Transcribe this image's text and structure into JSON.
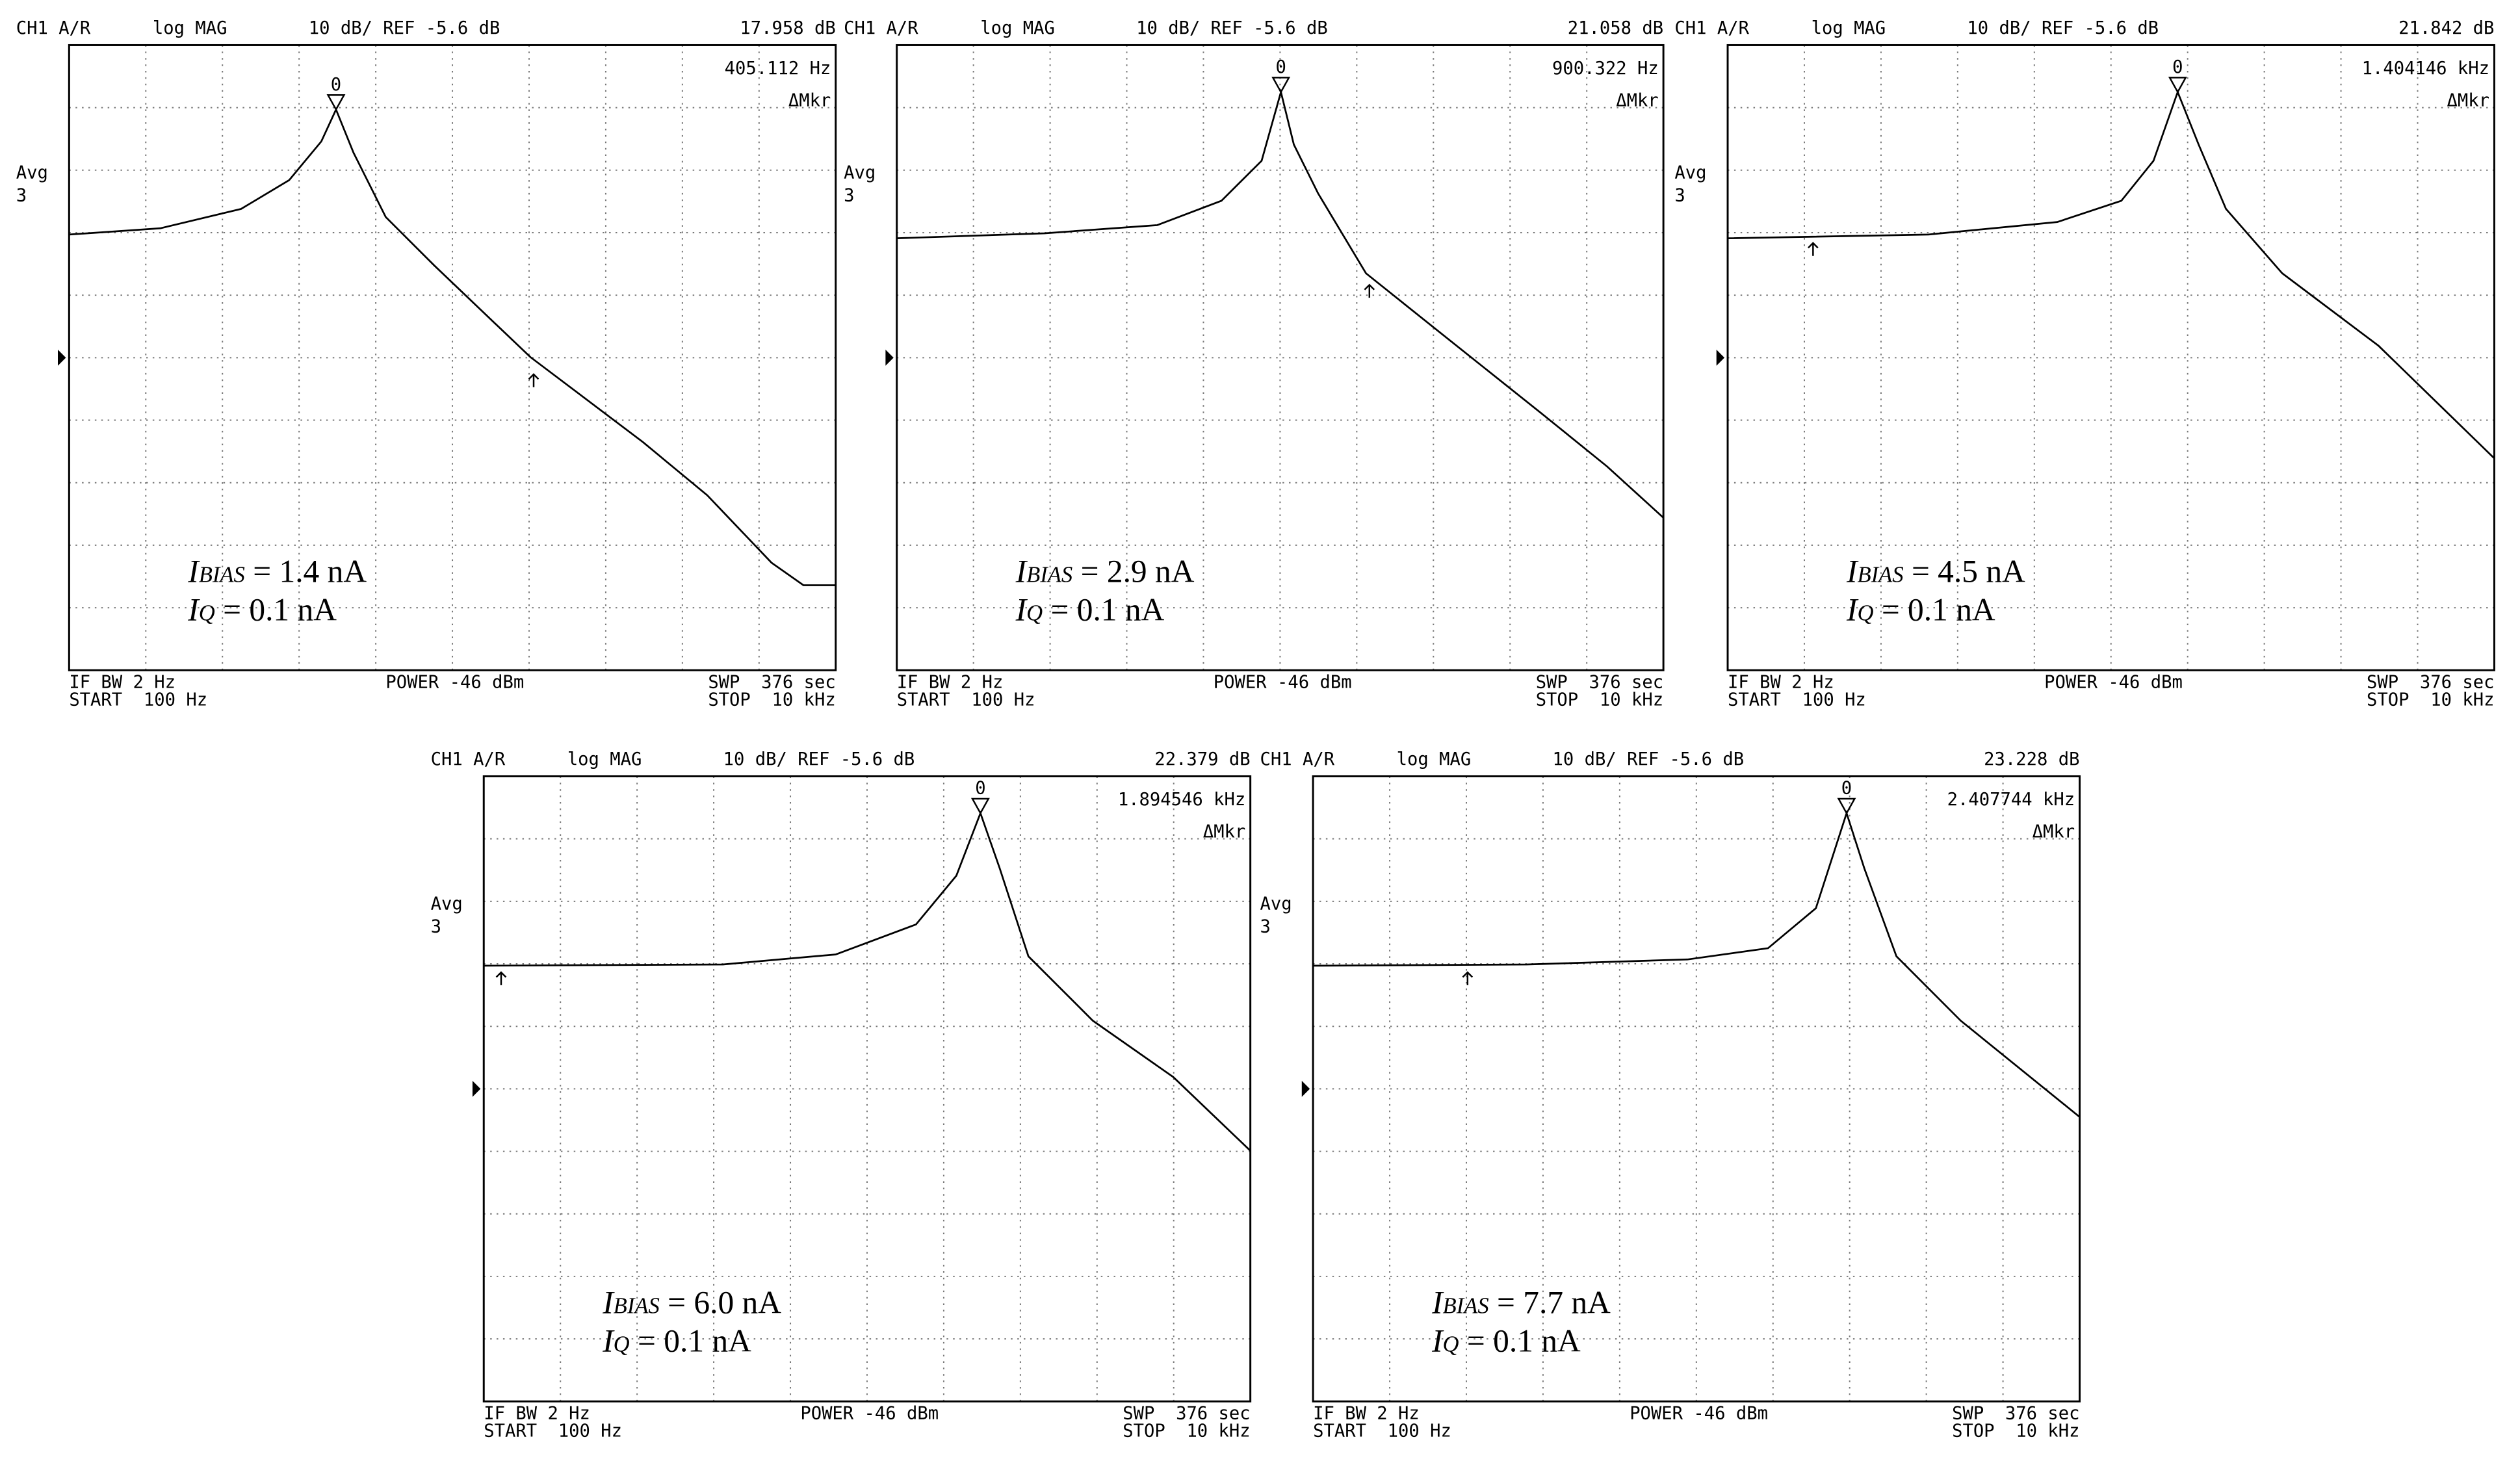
{
  "chart_data": [
    {
      "type": "line",
      "header": {
        "channel": "CH1 A/R",
        "format": "log MAG",
        "scale": "10 dB/ REF -5.6 dB",
        "readout": "17.958 dB",
        "marker_readout": "405.112 Hz",
        "marker_mode": "ΔMkr",
        "avg_label": "Avg",
        "avg_count": "3"
      },
      "marker_label": "0",
      "footer": {
        "if_bw": "IF BW 2 Hz",
        "start": "START  100 Hz",
        "power": "POWER -46 dBm",
        "sweep": "SWP  376 sec",
        "stop": "STOP  10 kHz"
      },
      "annotations": [
        {
          "symbol": "I",
          "subscript": "BIAS",
          "text": " = 1.4 nA"
        },
        {
          "symbol": "I",
          "subscript": "Q",
          "text": " = 0.1 nA"
        }
      ],
      "x": [
        100,
        173,
        281,
        375,
        455,
        497,
        552,
        670,
        895,
        1597,
        3140,
        4620,
        6800,
        8240,
        10000
      ],
      "values": [
        14.1,
        15.1,
        18.2,
        22.8,
        29.0,
        34.1,
        27.2,
        16.9,
        9.2,
        -5.5,
        -19.1,
        -27.6,
        -38.4,
        -42.0,
        -42.0
      ],
      "ref_marker": {
        "x": 1629,
        "y": -8.0
      },
      "color": "#000000",
      "log_x": true,
      "xlim": [
        100,
        10000
      ],
      "xticks": [
        100,
        158.5,
        251.2,
        398.1,
        631,
        1000,
        1585,
        2512,
        3981,
        6310,
        10000
      ],
      "ylim": [
        -55.6,
        44.4
      ],
      "yticks": [
        -55.6,
        -45.6,
        -35.6,
        -25.6,
        -15.6,
        -5.6,
        4.4,
        14.4,
        24.4,
        34.4,
        44.4
      ],
      "grid": true
    },
    {
      "type": "line",
      "header": {
        "channel": "CH1 A/R",
        "format": "log MAG",
        "scale": "10 dB/ REF -5.6 dB",
        "readout": "21.058 dB",
        "marker_readout": "900.322 Hz",
        "marker_mode": "ΔMkr",
        "avg_label": "Avg",
        "avg_count": "3"
      },
      "marker_label": "0",
      "footer": {
        "if_bw": "IF BW 2 Hz",
        "start": "START  100 Hz",
        "power": "POWER -46 dBm",
        "sweep": "SWP  376 sec",
        "stop": "STOP  10 kHz"
      },
      "annotations": [
        {
          "symbol": "I",
          "subscript": "BIAS",
          "text": " = 2.9 nA"
        },
        {
          "symbol": "I",
          "subscript": "Q",
          "text": " = 0.1 nA"
        }
      ],
      "x": [
        100,
        243,
        478,
        703,
        895,
        1005,
        1086,
        1256,
        1675,
        2717,
        4850,
        7130,
        10000
      ],
      "values": [
        13.5,
        14.3,
        15.6,
        19.5,
        25.9,
        36.9,
        28.5,
        20.7,
        7.9,
        -2.4,
        -14.7,
        -23.0,
        -31.2
      ],
      "ref_marker": {
        "x": 1710,
        "y": 6.3
      },
      "color": "#000000",
      "log_x": true,
      "xlim": [
        100,
        10000
      ],
      "xticks": [
        100,
        158.5,
        251.2,
        398.1,
        631,
        1000,
        1585,
        2512,
        3981,
        6310,
        10000
      ],
      "ylim": [
        -55.6,
        44.4
      ],
      "yticks": [
        -55.6,
        -45.6,
        -35.6,
        -25.6,
        -15.6,
        -5.6,
        4.4,
        14.4,
        24.4,
        34.4,
        44.4
      ],
      "grid": true
    },
    {
      "type": "line",
      "header": {
        "channel": "CH1 A/R",
        "format": "log MAG",
        "scale": "10 dB/ REF -5.6 dB",
        "readout": "21.842 dB",
        "marker_readout": "1.404146 kHz",
        "marker_mode": "ΔMkr",
        "avg_label": "Avg",
        "avg_count": "3"
      },
      "marker_label": "0",
      "footer": {
        "if_bw": "IF BW 2 Hz",
        "start": "START  100 Hz",
        "power": "POWER -46 dBm",
        "sweep": "SWP  376 sec",
        "stop": "STOP  10 kHz"
      },
      "annotations": [
        {
          "symbol": "I",
          "subscript": "BIAS",
          "text": " = 4.5 nA"
        },
        {
          "symbol": "I",
          "subscript": "Q",
          "text": " = 0.1 nA"
        }
      ],
      "x": [
        100,
        334,
        724,
        1064,
        1291,
        1493,
        1693,
        1995,
        2797,
        4990,
        10000
      ],
      "values": [
        13.5,
        14.1,
        16.1,
        19.5,
        25.9,
        36.9,
        28.5,
        18.2,
        7.9,
        -3.7,
        -21.7
      ],
      "ref_marker": {
        "x": 167,
        "y": 13.0
      },
      "color": "#000000",
      "log_x": true,
      "xlim": [
        100,
        10000
      ],
      "xticks": [
        100,
        158.5,
        251.2,
        398.1,
        631,
        1000,
        1585,
        2512,
        3981,
        6310,
        10000
      ],
      "ylim": [
        -55.6,
        44.4
      ],
      "yticks": [
        -55.6,
        -45.6,
        -35.6,
        -25.6,
        -15.6,
        -5.6,
        4.4,
        14.4,
        24.4,
        34.4,
        44.4
      ],
      "grid": true
    },
    {
      "type": "line",
      "header": {
        "channel": "CH1 A/R",
        "format": "log MAG",
        "scale": "10 dB/ REF -5.6 dB",
        "readout": "22.379 dB",
        "marker_readout": "1.894546 kHz",
        "marker_mode": "ΔMkr",
        "avg_label": "Avg",
        "avg_count": "3"
      },
      "marker_label": "0",
      "footer": {
        "if_bw": "IF BW 2 Hz",
        "start": "START  100 Hz",
        "power": "POWER -46 dBm",
        "sweep": "SWP  376 sec",
        "stop": "STOP  10 kHz"
      },
      "annotations": [
        {
          "symbol": "I",
          "subscript": "BIAS",
          "text": " = 6.0 nA"
        },
        {
          "symbol": "I",
          "subscript": "Q",
          "text": " = 0.1 nA"
        }
      ],
      "x": [
        100,
        421,
        828,
        1342,
        1710,
        1976,
        2218,
        2636,
        3882,
        6290,
        10000
      ],
      "values": [
        14.1,
        14.3,
        15.9,
        20.7,
        28.5,
        38.5,
        29.7,
        15.6,
        5.3,
        -3.7,
        -15.5
      ],
      "ref_marker": {
        "x": 111,
        "y": 13.3
      },
      "color": "#000000",
      "log_x": true,
      "xlim": [
        100,
        10000
      ],
      "xticks": [
        100,
        158.5,
        251.2,
        398.1,
        631,
        1000,
        1585,
        2512,
        3981,
        6310,
        10000
      ],
      "ylim": [
        -55.6,
        44.4
      ],
      "yticks": [
        -55.6,
        -45.6,
        -35.6,
        -25.6,
        -15.6,
        -5.6,
        4.4,
        14.4,
        24.4,
        34.4,
        44.4
      ],
      "grid": true
    },
    {
      "type": "line",
      "header": {
        "channel": "CH1 A/R",
        "format": "log MAG",
        "scale": "10 dB/ REF -5.6 dB",
        "readout": "23.228 dB",
        "marker_readout": "2.407744 kHz",
        "marker_mode": "ΔMkr",
        "avg_label": "Avg",
        "avg_count": "3"
      },
      "marker_label": "0",
      "footer": {
        "if_bw": "IF BW 2 Hz",
        "start": "START  100 Hz",
        "power": "POWER -46 dBm",
        "sweep": "SWP  376 sec",
        "stop": "STOP  10 kHz"
      },
      "annotations": [
        {
          "symbol": "I",
          "subscript": "BIAS",
          "text": " = 7.7 nA"
        },
        {
          "symbol": "I",
          "subscript": "Q",
          "text": " = 0.1 nA"
        }
      ],
      "x": [
        100,
        361,
        948,
        1538,
        2051,
        2466,
        2742,
        3327,
        4895,
        10000
      ],
      "values": [
        14.1,
        14.3,
        15.1,
        16.9,
        23.3,
        38.5,
        29.7,
        15.6,
        5.3,
        -10.1
      ],
      "ref_marker": {
        "x": 253,
        "y": 13.3
      },
      "color": "#000000",
      "log_x": true,
      "xlim": [
        100,
        10000
      ],
      "xticks": [
        100,
        158.5,
        251.2,
        398.1,
        631,
        1000,
        1585,
        2512,
        3981,
        6310,
        10000
      ],
      "ylim": [
        -55.6,
        44.4
      ],
      "yticks": [
        -55.6,
        -45.6,
        -35.6,
        -25.6,
        -15.6,
        -5.6,
        4.4,
        14.4,
        24.4,
        34.4,
        44.4
      ],
      "grid": true
    }
  ]
}
